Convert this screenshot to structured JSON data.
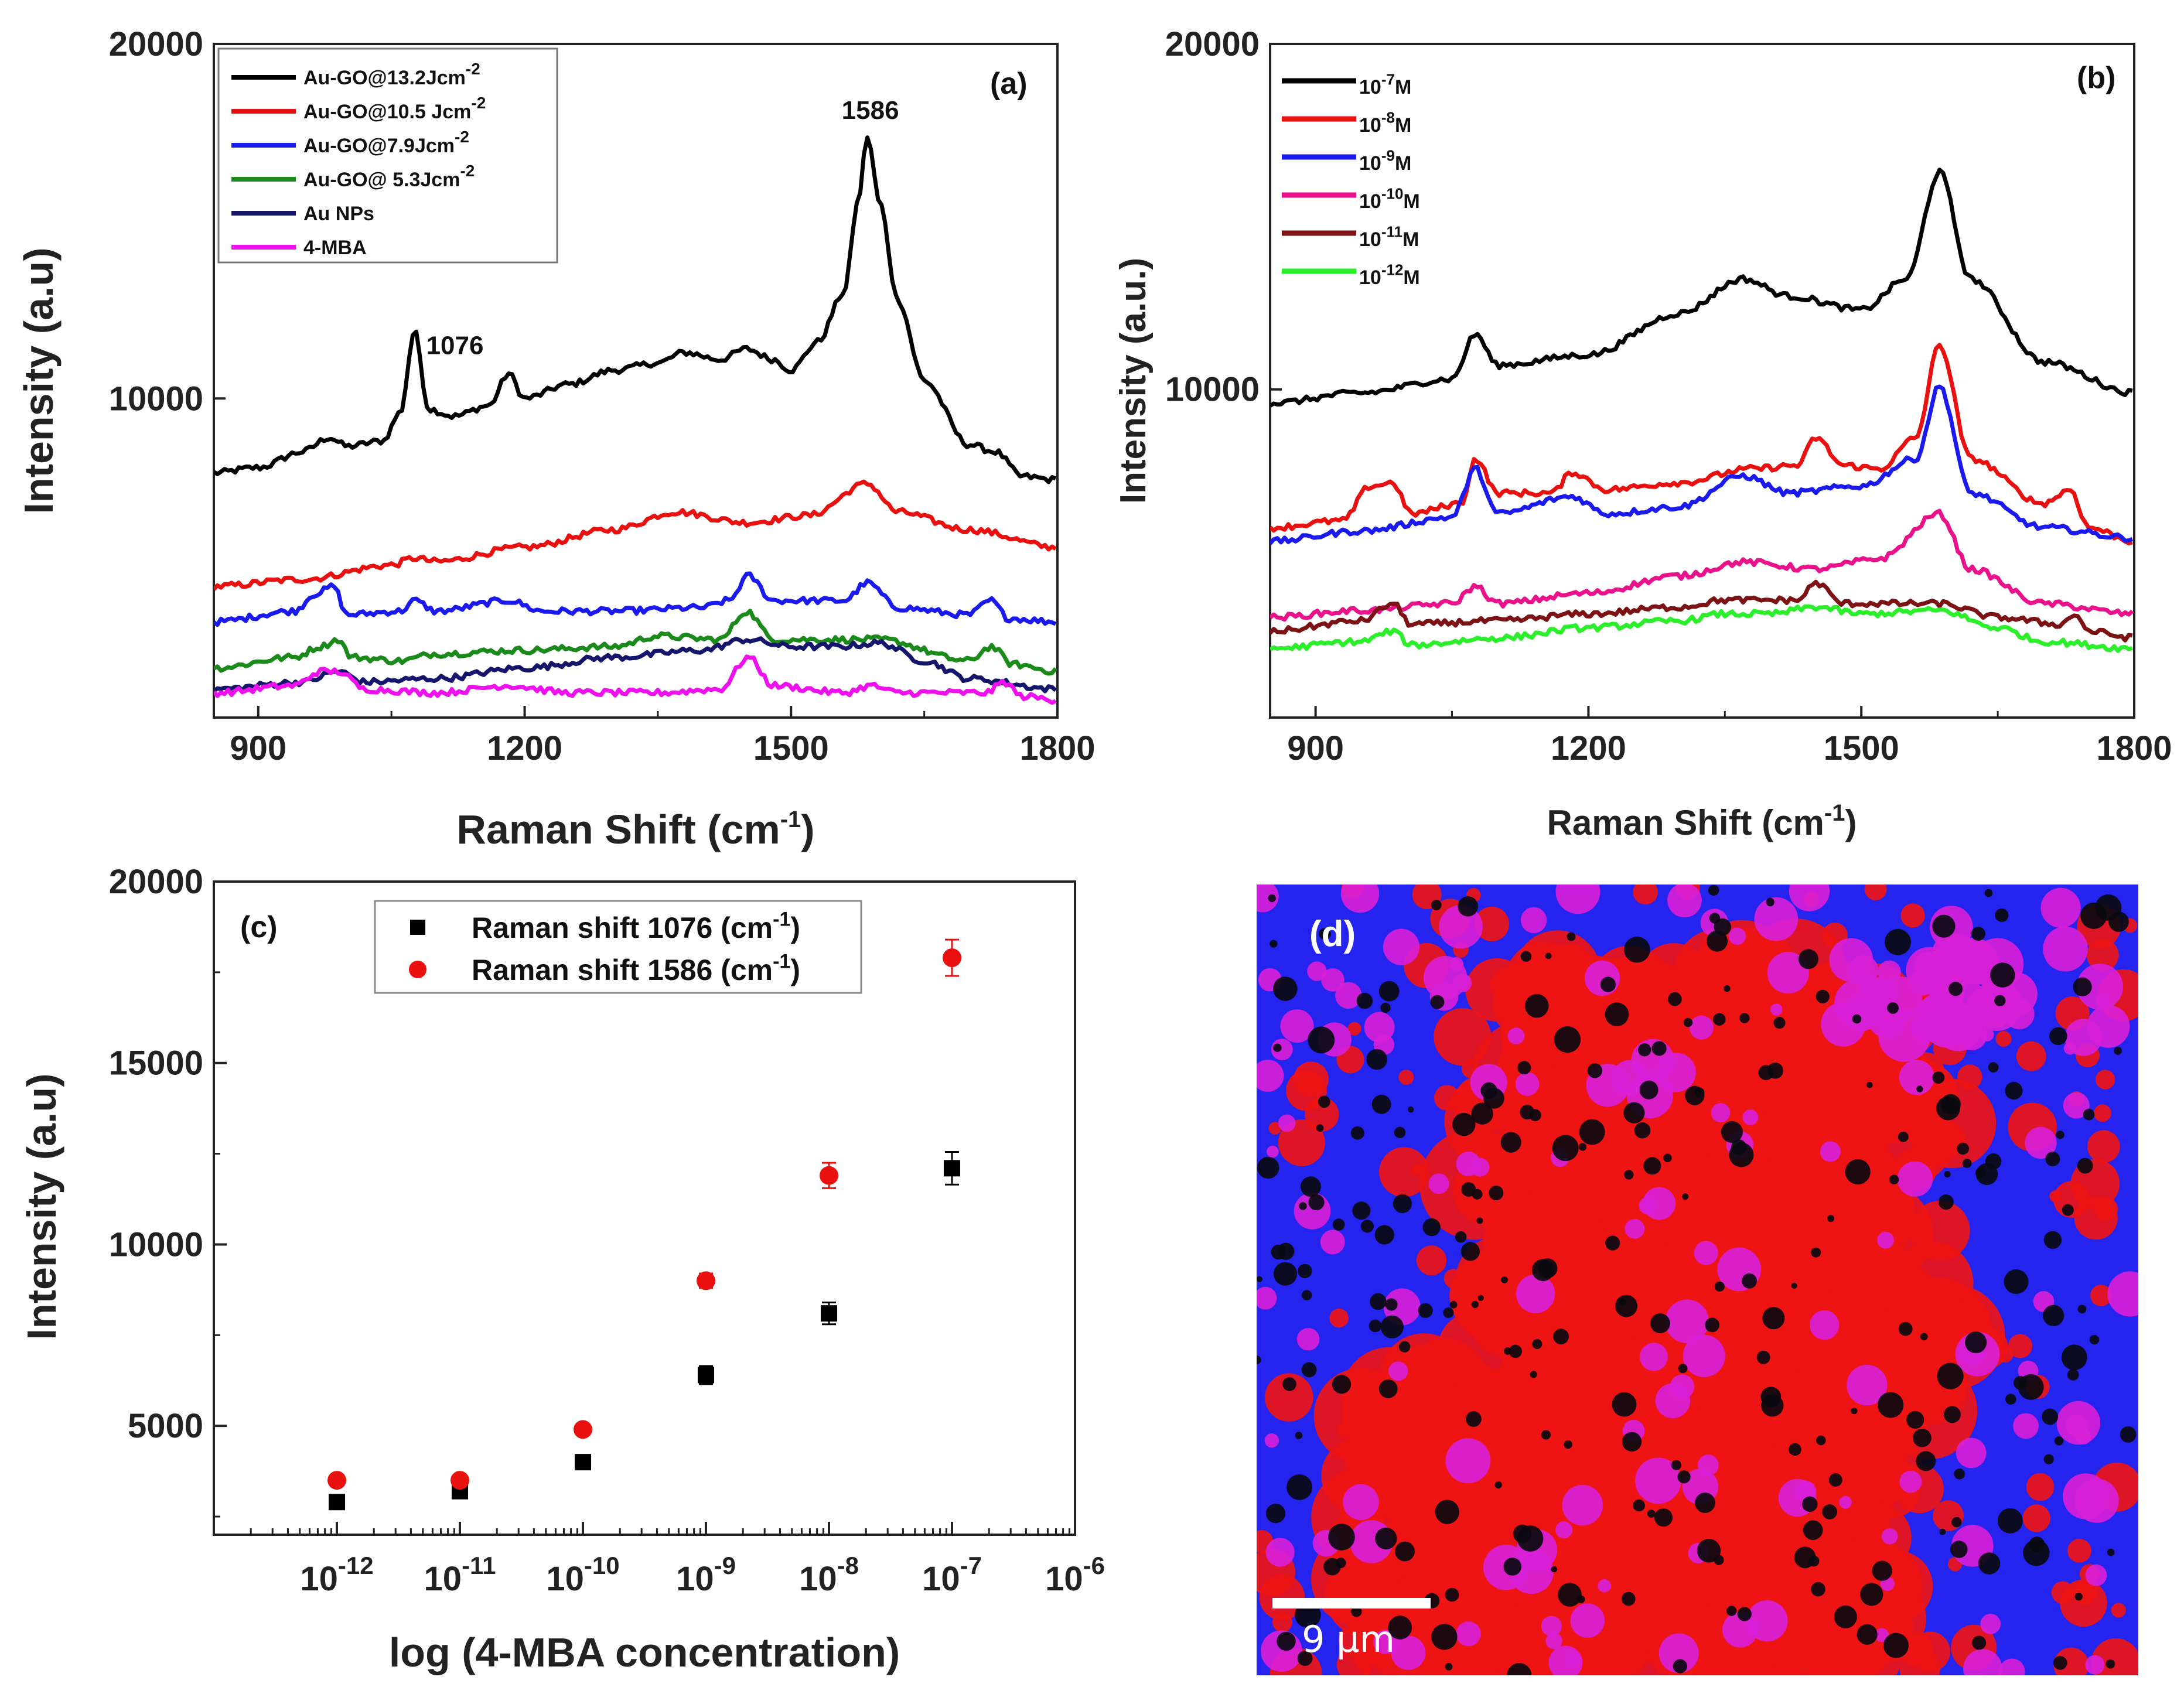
{
  "chart_data": [
    {
      "panel": "(a)",
      "type": "line",
      "xlabel": "Raman Shift (cm",
      "xlabel_sup": "-1",
      "xlabel_end": ")",
      "ylabel": "Intensity (a.u)",
      "xlim": [
        850,
        1800
      ],
      "ylim": [
        1000,
        20000
      ],
      "xticks": [
        900,
        1200,
        1500,
        1800
      ],
      "yticks": [
        10000,
        20000
      ],
      "annotations": [
        {
          "text": "1076",
          "x": 1076,
          "y": 11500
        },
        {
          "text": "1586",
          "x": 1586,
          "y": 17800
        }
      ],
      "series": [
        {
          "name": "Au-GO@13.2Jcm",
          "sup": "-2",
          "color": "#000000",
          "points": [
            [
              850,
              7900
            ],
            [
              900,
              8050
            ],
            [
              950,
              8500
            ],
            [
              980,
              8900
            ],
            [
              1000,
              8650
            ],
            [
              1040,
              8800
            ],
            [
              1060,
              9600
            ],
            [
              1076,
              11900
            ],
            [
              1092,
              9700
            ],
            [
              1120,
              9500
            ],
            [
              1160,
              9800
            ],
            [
              1182,
              10700
            ],
            [
              1200,
              10000
            ],
            [
              1250,
              10400
            ],
            [
              1300,
              10800
            ],
            [
              1350,
              11000
            ],
            [
              1380,
              11300
            ],
            [
              1420,
              11100
            ],
            [
              1450,
              11400
            ],
            [
              1480,
              11100
            ],
            [
              1500,
              10800
            ],
            [
              1530,
              11600
            ],
            [
              1560,
              13000
            ],
            [
              1575,
              15500
            ],
            [
              1586,
              17400
            ],
            [
              1600,
              15500
            ],
            [
              1620,
              12800
            ],
            [
              1650,
              10500
            ],
            [
              1700,
              8700
            ],
            [
              1730,
              8500
            ],
            [
              1760,
              7800
            ],
            [
              1800,
              7700
            ]
          ]
        },
        {
          "name": "Au-GO@10.5 Jcm",
          "sup": "-2",
          "color": "#e8110f",
          "points": [
            [
              850,
              4700
            ],
            [
              950,
              4900
            ],
            [
              1050,
              5300
            ],
            [
              1076,
              5500
            ],
            [
              1100,
              5400
            ],
            [
              1200,
              5800
            ],
            [
              1300,
              6300
            ],
            [
              1370,
              6800
            ],
            [
              1450,
              6500
            ],
            [
              1520,
              6700
            ],
            [
              1586,
              7600
            ],
            [
              1620,
              6800
            ],
            [
              1700,
              6300
            ],
            [
              1800,
              5800
            ]
          ]
        },
        {
          "name": "Au-GO@7.9Jcm",
          "sup": "-2",
          "color": "#1a1aef",
          "points": [
            [
              850,
              3700
            ],
            [
              940,
              4000
            ],
            [
              965,
              4500
            ],
            [
              985,
              4700
            ],
            [
              1000,
              3900
            ],
            [
              1060,
              4000
            ],
            [
              1076,
              4300
            ],
            [
              1100,
              4000
            ],
            [
              1182,
              4300
            ],
            [
              1220,
              4000
            ],
            [
              1300,
              4000
            ],
            [
              1400,
              4100
            ],
            [
              1430,
              4300
            ],
            [
              1452,
              5000
            ],
            [
              1480,
              4300
            ],
            [
              1560,
              4300
            ],
            [
              1586,
              4800
            ],
            [
              1620,
              4100
            ],
            [
              1700,
              3900
            ],
            [
              1725,
              4300
            ],
            [
              1745,
              3800
            ],
            [
              1800,
              3700
            ]
          ]
        },
        {
          "name": "Au-GO@ 5.3Jcm",
          "sup": "-2",
          "color": "#1a8a1a",
          "points": [
            [
              850,
              2400
            ],
            [
              940,
              2700
            ],
            [
              970,
              3000
            ],
            [
              990,
              3200
            ],
            [
              1005,
              2700
            ],
            [
              1060,
              2600
            ],
            [
              1100,
              2800
            ],
            [
              1200,
              2900
            ],
            [
              1300,
              3000
            ],
            [
              1350,
              3300
            ],
            [
              1420,
              3200
            ],
            [
              1450,
              4000
            ],
            [
              1480,
              3200
            ],
            [
              1600,
              3200
            ],
            [
              1700,
              2600
            ],
            [
              1725,
              3000
            ],
            [
              1750,
              2500
            ],
            [
              1800,
              2300
            ]
          ]
        },
        {
          "name": "Au NPs",
          "sup": "",
          "color": "#15166b",
          "points": [
            [
              850,
              1800
            ],
            [
              950,
              2000
            ],
            [
              990,
              2300
            ],
            [
              1020,
              2000
            ],
            [
              1100,
              2100
            ],
            [
              1200,
              2400
            ],
            [
              1300,
              2700
            ],
            [
              1400,
              2900
            ],
            [
              1450,
              3200
            ],
            [
              1500,
              3000
            ],
            [
              1550,
              3000
            ],
            [
              1600,
              3100
            ],
            [
              1650,
              2600
            ],
            [
              1700,
              2100
            ],
            [
              1800,
              1800
            ]
          ]
        },
        {
          "name": "4-MBA",
          "sup": "",
          "color": "#ee11ee",
          "points": [
            [
              850,
              1700
            ],
            [
              940,
              1900
            ],
            [
              970,
              2300
            ],
            [
              990,
              2300
            ],
            [
              1020,
              1800
            ],
            [
              1100,
              1700
            ],
            [
              1182,
              1900
            ],
            [
              1250,
              1700
            ],
            [
              1350,
              1700
            ],
            [
              1420,
              1800
            ],
            [
              1452,
              2700
            ],
            [
              1480,
              1900
            ],
            [
              1560,
              1700
            ],
            [
              1590,
              1900
            ],
            [
              1620,
              1700
            ],
            [
              1720,
              1700
            ],
            [
              1740,
              2000
            ],
            [
              1760,
              1600
            ],
            [
              1800,
              1500
            ]
          ]
        }
      ]
    },
    {
      "panel": "(b)",
      "type": "line",
      "xlabel": "Raman Shift (cm",
      "xlabel_sup": "-1",
      "xlabel_end": ")",
      "ylabel": "Intensity (a.u.)",
      "xlim": [
        850,
        1800
      ],
      "ylim": [
        500,
        20000
      ],
      "xticks": [
        900,
        1200,
        1500,
        1800
      ],
      "yticks": [
        10000,
        20000
      ],
      "series": [
        {
          "name": "10",
          "sup": "-7",
          "suffix": "M",
          "color": "#000000",
          "points": [
            [
              850,
              9600
            ],
            [
              950,
              9900
            ],
            [
              1050,
              10300
            ],
            [
              1076,
              11600
            ],
            [
              1100,
              10700
            ],
            [
              1200,
              11000
            ],
            [
              1300,
              12200
            ],
            [
              1370,
              13200
            ],
            [
              1420,
              12700
            ],
            [
              1500,
              12300
            ],
            [
              1550,
              13200
            ],
            [
              1586,
              16300
            ],
            [
              1620,
              13200
            ],
            [
              1700,
              10800
            ],
            [
              1800,
              9900
            ]
          ]
        },
        {
          "name": "10",
          "sup": "-8",
          "suffix": "M",
          "color": "#e8110f",
          "points": [
            [
              850,
              6000
            ],
            [
              930,
              6200
            ],
            [
              960,
              7200
            ],
            [
              985,
              7300
            ],
            [
              1005,
              6400
            ],
            [
              1060,
              6700
            ],
            [
              1076,
              8000
            ],
            [
              1100,
              7000
            ],
            [
              1160,
              7000
            ],
            [
              1182,
              7600
            ],
            [
              1220,
              7100
            ],
            [
              1300,
              7300
            ],
            [
              1380,
              7700
            ],
            [
              1430,
              7800
            ],
            [
              1450,
              8600
            ],
            [
              1480,
              7800
            ],
            [
              1520,
              7700
            ],
            [
              1560,
              8600
            ],
            [
              1586,
              11300
            ],
            [
              1620,
              8000
            ],
            [
              1700,
              6700
            ],
            [
              1730,
              7100
            ],
            [
              1750,
              6000
            ],
            [
              1800,
              5600
            ]
          ]
        },
        {
          "name": "10",
          "sup": "-9",
          "suffix": "M",
          "color": "#1a1aef",
          "points": [
            [
              850,
              5600
            ],
            [
              950,
              5900
            ],
            [
              1050,
              6300
            ],
            [
              1076,
              7700
            ],
            [
              1100,
              6400
            ],
            [
              1182,
              6900
            ],
            [
              1220,
              6400
            ],
            [
              1300,
              6600
            ],
            [
              1370,
              7500
            ],
            [
              1420,
              7000
            ],
            [
              1500,
              7200
            ],
            [
              1560,
              8000
            ],
            [
              1586,
              10100
            ],
            [
              1620,
              7000
            ],
            [
              1700,
              6000
            ],
            [
              1800,
              5700
            ]
          ]
        },
        {
          "name": "10",
          "sup": "-10",
          "suffix": "M",
          "color": "#ea128b",
          "points": [
            [
              850,
              3400
            ],
            [
              950,
              3600
            ],
            [
              1050,
              3800
            ],
            [
              1076,
              4300
            ],
            [
              1100,
              3800
            ],
            [
              1200,
              4100
            ],
            [
              1300,
              4600
            ],
            [
              1370,
              5000
            ],
            [
              1450,
              4800
            ],
            [
              1520,
              5100
            ],
            [
              1586,
              6400
            ],
            [
              1620,
              4800
            ],
            [
              1700,
              3800
            ],
            [
              1800,
              3500
            ]
          ]
        },
        {
          "name": "10",
          "sup": "-11",
          "suffix": "M",
          "color": "#7c1213",
          "points": [
            [
              850,
              3000
            ],
            [
              950,
              3300
            ],
            [
              985,
              3800
            ],
            [
              1005,
              3200
            ],
            [
              1100,
              3300
            ],
            [
              1200,
              3500
            ],
            [
              1300,
              3700
            ],
            [
              1350,
              3900
            ],
            [
              1430,
              3900
            ],
            [
              1450,
              4400
            ],
            [
              1480,
              3800
            ],
            [
              1586,
              3800
            ],
            [
              1650,
              3400
            ],
            [
              1720,
              3200
            ],
            [
              1735,
              3500
            ],
            [
              1750,
              3000
            ],
            [
              1800,
              2800
            ]
          ]
        },
        {
          "name": "10",
          "sup": "-12",
          "suffix": "M",
          "color": "#2cef2c",
          "points": [
            [
              850,
              2500
            ],
            [
              950,
              2700
            ],
            [
              985,
              3000
            ],
            [
              1005,
              2600
            ],
            [
              1100,
              2800
            ],
            [
              1200,
              3100
            ],
            [
              1300,
              3300
            ],
            [
              1350,
              3500
            ],
            [
              1400,
              3500
            ],
            [
              1450,
              3700
            ],
            [
              1500,
              3500
            ],
            [
              1586,
              3600
            ],
            [
              1650,
              3100
            ],
            [
              1700,
              2700
            ],
            [
              1800,
              2500
            ]
          ]
        }
      ]
    },
    {
      "panel": "(c)",
      "type": "scatter",
      "xlabel": "log (4-MBA concentration)",
      "ylabel": "Intensity (a.u)",
      "x_scale": "log",
      "xlim_exp": [
        -13,
        -6
      ],
      "ylim": [
        2000,
        20000
      ],
      "yticks": [
        5000,
        10000,
        15000,
        20000
      ],
      "xtick_base": "10",
      "xtick_exps": [
        "-12",
        "-11",
        "-10",
        "-9",
        "-8",
        "-7",
        "-6"
      ],
      "series": [
        {
          "name": "Raman shift 1076 (cm",
          "sup": "-1",
          "suffix": ")",
          "marker": "square",
          "color": "#000000",
          "x_exp": [
            -12,
            -11,
            -10,
            -9,
            -8,
            -7
          ],
          "values": [
            2900,
            3200,
            4000,
            6400,
            8100,
            12100
          ],
          "errors": [
            100,
            100,
            100,
            250,
            300,
            450
          ]
        },
        {
          "name": "Raman shift 1586 (cm",
          "sup": "-1",
          "suffix": ")",
          "marker": "circle",
          "color": "#e8110f",
          "x_exp": [
            -12,
            -11,
            -10,
            -9,
            -8,
            -7
          ],
          "values": [
            3500,
            3500,
            4900,
            9000,
            11900,
            17900
          ],
          "errors": [
            100,
            100,
            150,
            200,
            350,
            500
          ]
        }
      ]
    }
  ],
  "panel_d": {
    "label": "(d)",
    "scale_bar": "9 µm",
    "colors": {
      "blue": "#2424ee",
      "red": "#ee1515",
      "magenta": "#d820d8",
      "dark": "#0a0a10"
    }
  }
}
